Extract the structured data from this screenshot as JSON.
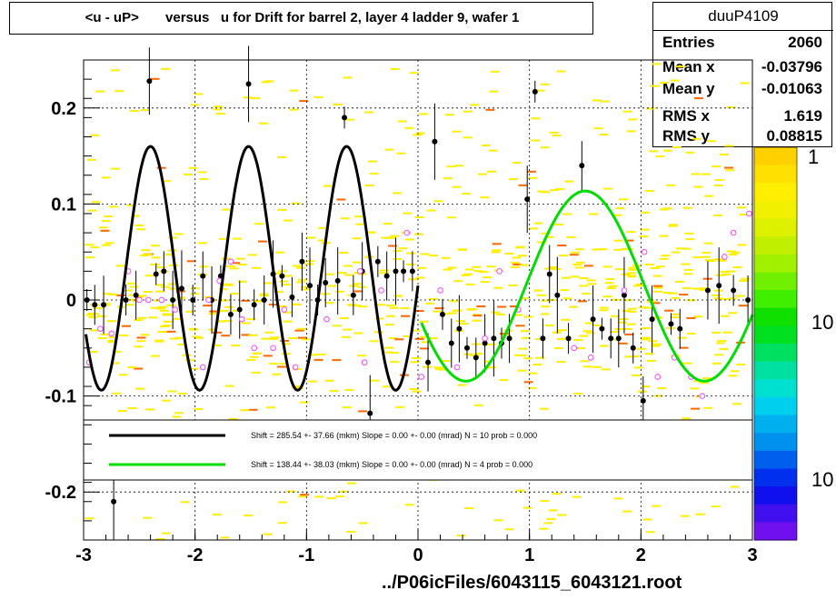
{
  "title": "<u - uP>       versus   u for Drift for barrel 2, layer 4 ladder 9, wafer 1",
  "footer": "../P06icFiles/6043115_6043121.root",
  "stats": {
    "name": "duuP4109",
    "rows": [
      {
        "label": "Entries",
        "value": "2060"
      },
      {
        "label": "Mean x",
        "value": "-0.03796"
      },
      {
        "label": "Mean y",
        "value": "-0.01063"
      },
      {
        "label": "RMS x",
        "value": "1.619"
      },
      {
        "label": "RMS y",
        "value": "0.08815"
      }
    ]
  },
  "legend": {
    "entries": [
      {
        "text": "Shift =   285.54 +- 37.66 (mkm) Slope =     0.00 +- 0.00 (mrad)  N = 10 prob = 0.000",
        "color": "#000000"
      },
      {
        "text": "Shift =   138.44 +- 38.03 (mkm) Slope =     0.00 +- 0.00 (mrad)  N = 4 prob = 0.000",
        "color": "#00dd00"
      }
    ]
  },
  "palette_labels": [
    "1",
    "10",
    "10"
  ],
  "chart_data": {
    "type": "scatter",
    "xlim": [
      -3,
      3
    ],
    "ylim": [
      -0.25,
      0.25
    ],
    "x_ticks": [
      -3,
      -2,
      -1,
      0,
      1,
      2,
      3
    ],
    "x_tick_labels": [
      "-3",
      "-2",
      "-1",
      "0",
      "1",
      "2",
      "3"
    ],
    "y_ticks": [
      -0.2,
      -0.1,
      0,
      0.1,
      0.2
    ],
    "y_tick_labels": [
      "-0.2",
      "-0.1",
      "0",
      "0.1",
      "0.2"
    ],
    "grid": true,
    "colors": {
      "fit_left": "#000000",
      "fit_right": "#00dd00",
      "profile": "#000000",
      "open_marker": "#ff44ff",
      "histogram_low": "#ffee00",
      "histogram_high": "#ff6600"
    },
    "profile_points": [
      {
        "x": -2.97,
        "y": 0.0
      },
      {
        "x": -2.9,
        "y": -0.005
      },
      {
        "x": -2.82,
        "y": -0.005
      },
      {
        "x": -2.73,
        "y": -0.21
      },
      {
        "x": -2.62,
        "y": 0.0
      },
      {
        "x": -2.53,
        "y": 0.005
      },
      {
        "x": -2.41,
        "y": 0.228
      },
      {
        "x": -2.35,
        "y": 0.027
      },
      {
        "x": -2.28,
        "y": 0.03
      },
      {
        "x": -2.2,
        "y": 0.0
      },
      {
        "x": -2.12,
        "y": 0.012
      },
      {
        "x": -2.02,
        "y": 0.0
      },
      {
        "x": -1.93,
        "y": 0.025
      },
      {
        "x": -1.85,
        "y": 0.0
      },
      {
        "x": -1.77,
        "y": 0.025
      },
      {
        "x": -1.68,
        "y": -0.015
      },
      {
        "x": -1.6,
        "y": -0.01
      },
      {
        "x": -1.52,
        "y": 0.225
      },
      {
        "x": -1.47,
        "y": -0.005
      },
      {
        "x": -1.38,
        "y": 0.0
      },
      {
        "x": -1.3,
        "y": 0.027
      },
      {
        "x": -1.22,
        "y": 0.025
      },
      {
        "x": -1.13,
        "y": 0.003
      },
      {
        "x": -1.04,
        "y": 0.04
      },
      {
        "x": -0.97,
        "y": 0.015
      },
      {
        "x": -0.9,
        "y": 0.0
      },
      {
        "x": -0.83,
        "y": 0.018
      },
      {
        "x": -0.72,
        "y": 0.02
      },
      {
        "x": -0.66,
        "y": 0.19
      },
      {
        "x": -0.58,
        "y": 0.005
      },
      {
        "x": -0.5,
        "y": 0.03
      },
      {
        "x": -0.43,
        "y": -0.118
      },
      {
        "x": -0.36,
        "y": 0.04
      },
      {
        "x": -0.28,
        "y": 0.025
      },
      {
        "x": -0.2,
        "y": 0.03
      },
      {
        "x": -0.13,
        "y": 0.03
      },
      {
        "x": -0.05,
        "y": 0.03
      },
      {
        "x": 0.09,
        "y": -0.065
      },
      {
        "x": 0.15,
        "y": 0.165
      },
      {
        "x": 0.22,
        "y": -0.015
      },
      {
        "x": 0.3,
        "y": -0.045
      },
      {
        "x": 0.37,
        "y": -0.03
      },
      {
        "x": 0.44,
        "y": -0.05
      },
      {
        "x": 0.52,
        "y": -0.06
      },
      {
        "x": 0.6,
        "y": -0.045
      },
      {
        "x": 0.68,
        "y": -0.04
      },
      {
        "x": 0.75,
        "y": -0.045
      },
      {
        "x": 0.82,
        "y": -0.04
      },
      {
        "x": 0.98,
        "y": 0.105
      },
      {
        "x": 1.05,
        "y": 0.217
      },
      {
        "x": 1.12,
        "y": -0.04
      },
      {
        "x": 1.18,
        "y": 0.027
      },
      {
        "x": 1.25,
        "y": 0.005
      },
      {
        "x": 1.35,
        "y": -0.04
      },
      {
        "x": 1.47,
        "y": 0.14
      },
      {
        "x": 1.57,
        "y": -0.02
      },
      {
        "x": 1.65,
        "y": -0.03
      },
      {
        "x": 1.73,
        "y": -0.04
      },
      {
        "x": 1.8,
        "y": -0.04
      },
      {
        "x": 1.85,
        "y": 0.005
      },
      {
        "x": 1.93,
        "y": -0.05
      },
      {
        "x": 2.02,
        "y": -0.105
      },
      {
        "x": 2.1,
        "y": -0.02
      },
      {
        "x": 2.27,
        "y": -0.025
      },
      {
        "x": 2.35,
        "y": -0.03
      },
      {
        "x": 2.6,
        "y": 0.01
      },
      {
        "x": 2.7,
        "y": 0.015
      },
      {
        "x": 2.83,
        "y": 0.01
      },
      {
        "x": 2.96,
        "y": 0.0
      }
    ],
    "open_points": [
      {
        "x": -2.95,
        "y": -0.065
      },
      {
        "x": -2.85,
        "y": -0.03
      },
      {
        "x": -2.75,
        "y": -0.035
      },
      {
        "x": -2.6,
        "y": 0.03
      },
      {
        "x": -2.5,
        "y": 0.0
      },
      {
        "x": -2.42,
        "y": 0.0
      },
      {
        "x": -2.3,
        "y": 0.0
      },
      {
        "x": -2.18,
        "y": -0.01
      },
      {
        "x": -1.93,
        "y": -0.07
      },
      {
        "x": -1.88,
        "y": 0.0
      },
      {
        "x": -1.78,
        "y": 0.02
      },
      {
        "x": -1.68,
        "y": 0.04
      },
      {
        "x": -1.58,
        "y": -0.02
      },
      {
        "x": -1.47,
        "y": -0.05
      },
      {
        "x": -1.3,
        "y": -0.05
      },
      {
        "x": -1.2,
        "y": -0.01
      },
      {
        "x": -1.1,
        "y": -0.07
      },
      {
        "x": -0.82,
        "y": -0.02
      },
      {
        "x": -0.52,
        "y": 0.03
      },
      {
        "x": -0.48,
        "y": -0.065
      },
      {
        "x": -0.33,
        "y": 0.01
      },
      {
        "x": -0.1,
        "y": 0.07
      },
      {
        "x": 0.03,
        "y": -0.08
      },
      {
        "x": 0.2,
        "y": 0.01
      },
      {
        "x": 0.35,
        "y": -0.07
      },
      {
        "x": 0.6,
        "y": -0.04
      },
      {
        "x": 0.73,
        "y": 0.03
      },
      {
        "x": 0.9,
        "y": -0.01
      },
      {
        "x": 1.4,
        "y": -0.05
      },
      {
        "x": 1.55,
        "y": -0.06
      },
      {
        "x": 1.85,
        "y": 0.01
      },
      {
        "x": 2.03,
        "y": 0.05
      },
      {
        "x": 2.15,
        "y": -0.08
      },
      {
        "x": 2.3,
        "y": -0.06
      },
      {
        "x": 2.45,
        "y": -0.08
      },
      {
        "x": 2.55,
        "y": -0.1
      },
      {
        "x": 2.75,
        "y": 0.045
      },
      {
        "x": 2.83,
        "y": 0.07
      },
      {
        "x": 2.97,
        "y": 0.09
      }
    ],
    "fits": [
      {
        "name": "black fit",
        "color": "#000000",
        "x_range": [
          -2.98,
          0.0
        ],
        "amplitude": 0.127,
        "offset": 0.033,
        "period": 0.88,
        "peak_x": -2.4
      },
      {
        "name": "green fit",
        "color": "#00dd00",
        "x_range": [
          0.03,
          3.0
        ],
        "amplitude": 0.099,
        "offset": 0.0145,
        "period": 2.14,
        "peak_x": 1.5
      }
    ]
  }
}
